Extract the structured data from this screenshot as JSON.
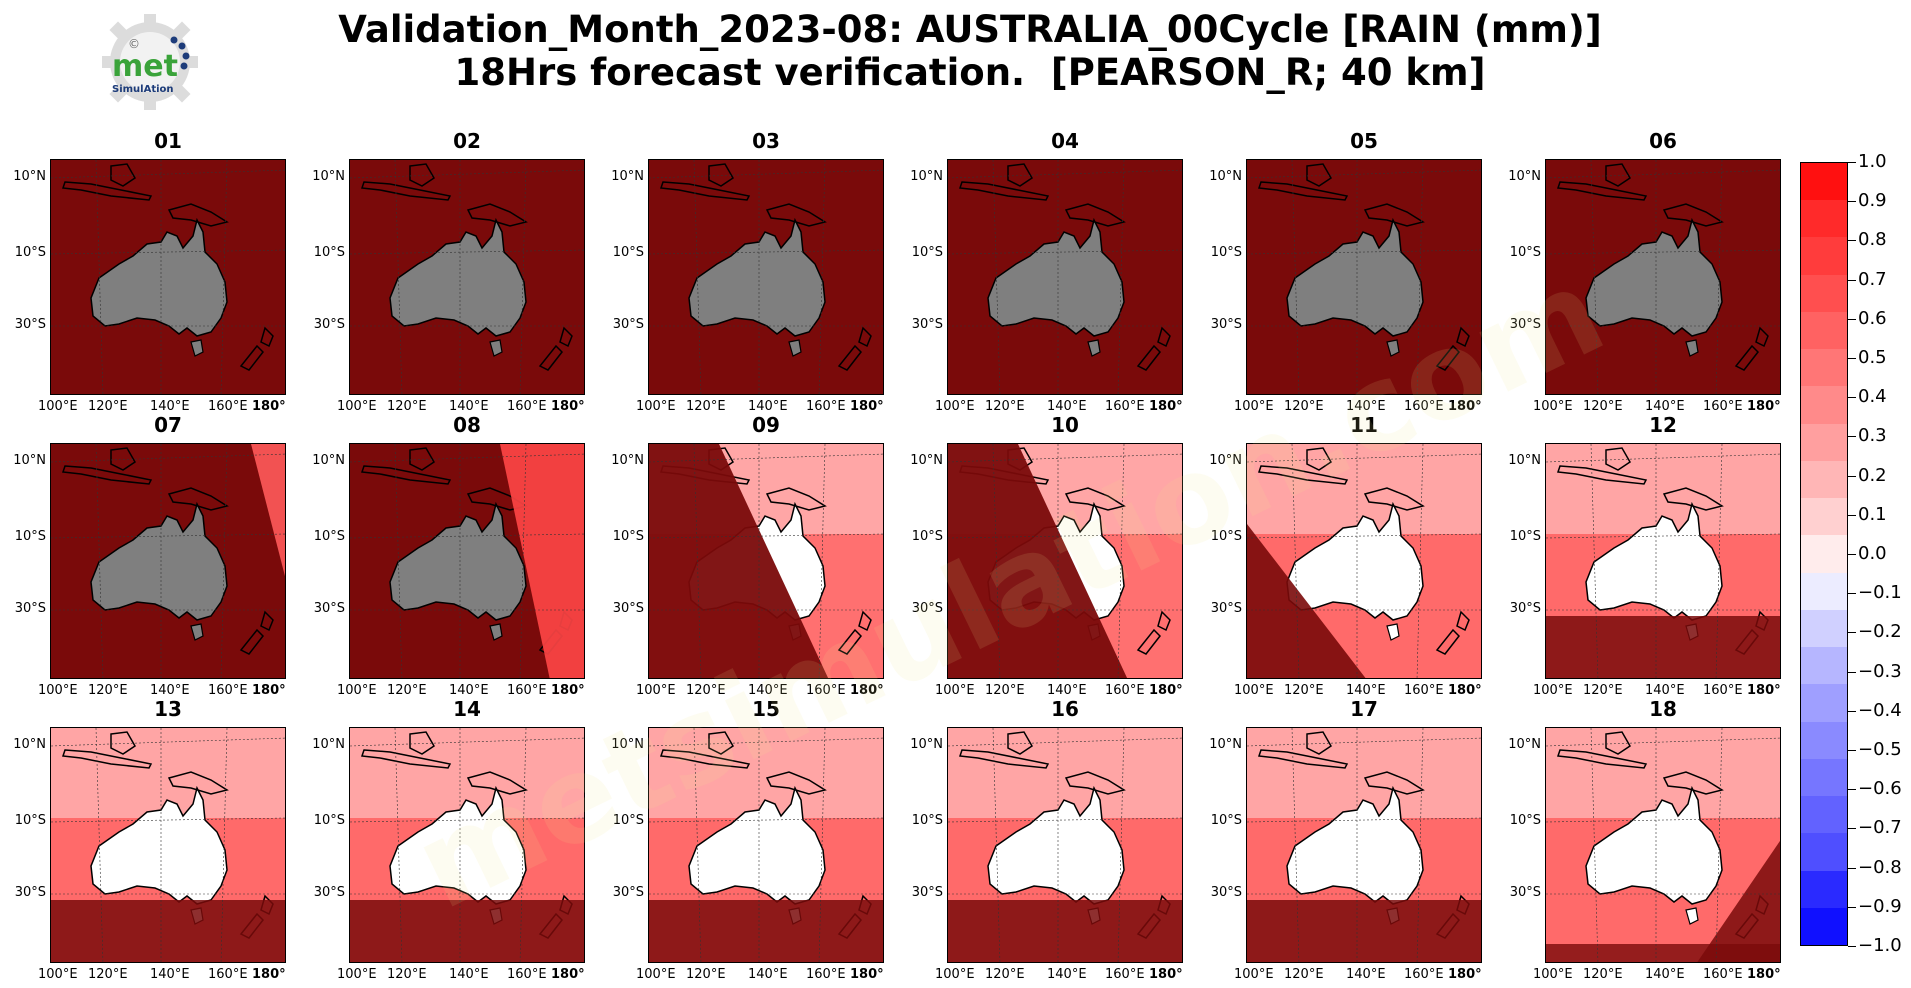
{
  "title": "Validation_Month_2023-08: AUSTRALIA_00Cycle [RAIN (mm)]\n18Hrs forecast verification.  [PEARSON_R; 40 km]",
  "logo": {
    "text_main": "met",
    "text_sub": "SimulAtion",
    "mark": "©"
  },
  "panels": [
    {
      "label": "01",
      "style": "dark"
    },
    {
      "label": "02",
      "style": "dark"
    },
    {
      "label": "03",
      "style": "dark"
    },
    {
      "label": "04",
      "style": "dark"
    },
    {
      "label": "05",
      "style": "dark"
    },
    {
      "label": "06",
      "style": "dark"
    },
    {
      "label": "07",
      "style": "dark_edge"
    },
    {
      "label": "08",
      "style": "dark_partial"
    },
    {
      "label": "09",
      "style": "half"
    },
    {
      "label": "10",
      "style": "half"
    },
    {
      "label": "11",
      "style": "bright_lowerleft"
    },
    {
      "label": "12",
      "style": "bright_bottom"
    },
    {
      "label": "13",
      "style": "bright_bottom"
    },
    {
      "label": "14",
      "style": "bright_bottom"
    },
    {
      "label": "15",
      "style": "bright_bottom"
    },
    {
      "label": "16",
      "style": "bright_bottom"
    },
    {
      "label": "17",
      "style": "bright_bottom"
    },
    {
      "label": "18",
      "style": "bright_lowerright"
    }
  ],
  "lat_labels": [
    "10°N",
    "10°S",
    "30°S"
  ],
  "lon_labels": [
    "100°E",
    "120°E",
    "140°E",
    "160°E",
    "180°"
  ],
  "colorbar": {
    "min": -1.0,
    "max": 1.0,
    "tick_labels": [
      "1.0",
      "0.9",
      "0.8",
      "0.7",
      "0.6",
      "0.5",
      "0.4",
      "0.3",
      "0.2",
      "0.1",
      "0.0",
      "−0.1",
      "−0.2",
      "−0.3",
      "−0.4",
      "−0.5",
      "−0.6",
      "−0.7",
      "−0.8",
      "−0.9",
      "−1.0"
    ],
    "colors": [
      "#ff1010",
      "#ff2a2a",
      "#ff3c3c",
      "#ff4f4f",
      "#ff6262",
      "#ff7676",
      "#ff8a8a",
      "#ff9f9f",
      "#ffb6b6",
      "#ffd0d0",
      "#ffecec",
      "#ececff",
      "#d0d0ff",
      "#b6b6ff",
      "#9f9fff",
      "#8a8aff",
      "#7676ff",
      "#6262ff",
      "#4f4fff",
      "#2a2aff",
      "#1010ff"
    ]
  },
  "watermark": "metsimulation.com"
}
